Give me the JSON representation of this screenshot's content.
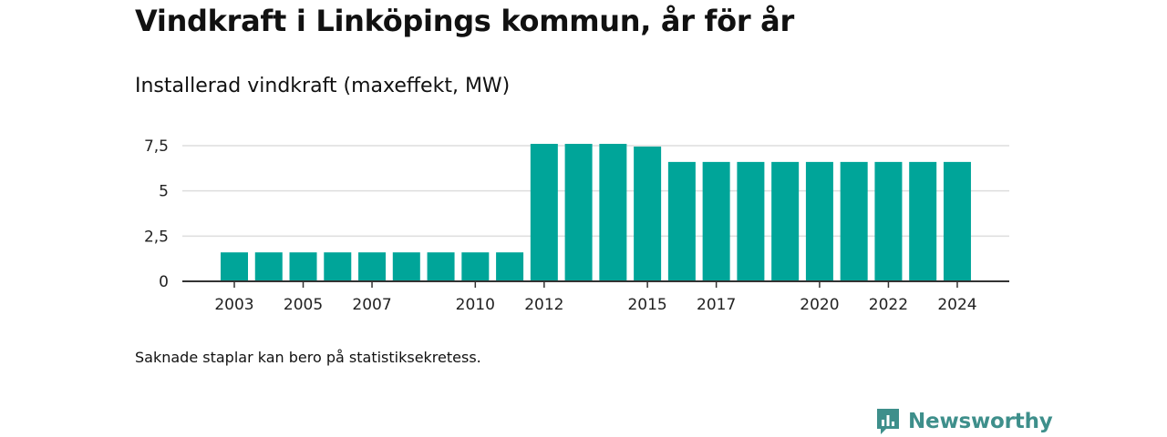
{
  "title": "Vindkraft i Linköpings kommun, år för år",
  "subtitle": "Installerad vindkraft (maxeffekt, MW)",
  "footnote": "Saknade staplar kan bero på statistiksekretess.",
  "brand": {
    "name": "Newsworthy",
    "icon": "newsworthy-logo-icon"
  },
  "colors": {
    "bar": "#00a599",
    "grid": "#dddddd",
    "axis": "#333333",
    "brand": "#3e8f8b"
  },
  "chart_data": {
    "type": "bar",
    "title": "Vindkraft i Linköpings kommun, år för år",
    "subtitle": "Installerad vindkraft (maxeffekt, MW)",
    "categories": [
      "2003",
      "2004",
      "2005",
      "2006",
      "2007",
      "2008",
      "2009",
      "2010",
      "2011",
      "2012",
      "2013",
      "2014",
      "2015",
      "2016",
      "2017",
      "2018",
      "2019",
      "2020",
      "2021",
      "2022",
      "2023",
      "2024"
    ],
    "values": [
      1.6,
      1.6,
      1.6,
      1.6,
      1.6,
      1.6,
      1.6,
      1.6,
      1.6,
      7.6,
      7.6,
      7.6,
      7.45,
      6.6,
      6.6,
      6.6,
      6.6,
      6.6,
      6.6,
      6.6,
      6.6,
      6.6
    ],
    "xtick_labels": [
      "2003",
      "2005",
      "2007",
      "2010",
      "2012",
      "2015",
      "2017",
      "2020",
      "2022",
      "2024"
    ],
    "yticks": [
      0,
      2.5,
      5,
      7.5
    ],
    "ytick_labels": [
      "0",
      "2,5",
      "5",
      "7,5"
    ],
    "ylim": [
      0,
      7.5
    ],
    "xlabel": "",
    "ylabel": "",
    "grid": true,
    "legend": "none"
  }
}
